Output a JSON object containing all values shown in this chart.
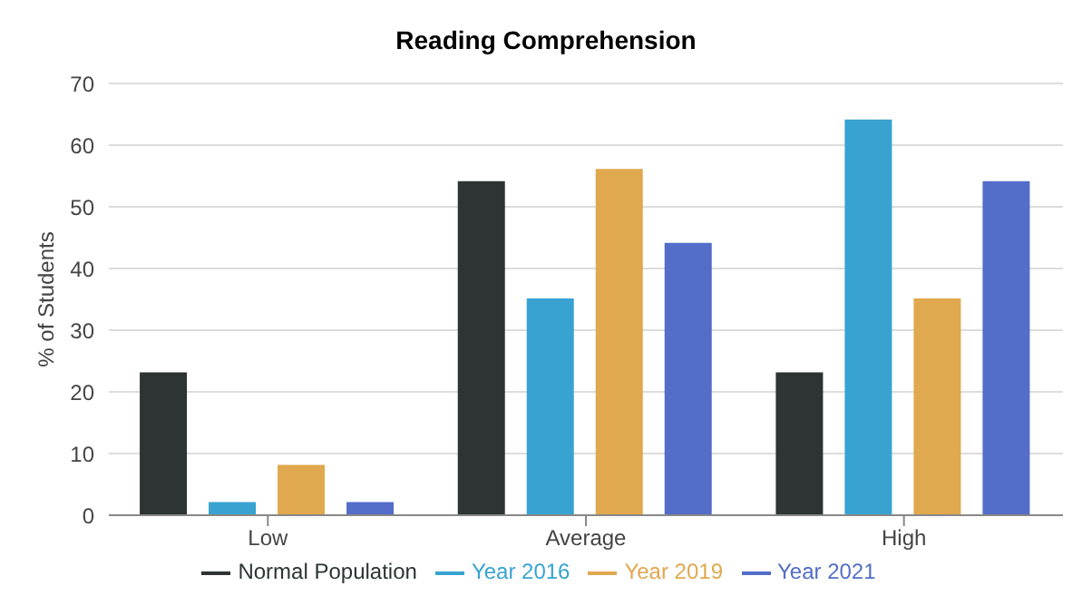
{
  "chart_data": {
    "type": "bar",
    "title": "Reading Comprehension",
    "ylabel": "% of Students",
    "categories": [
      "Low",
      "Average",
      "High"
    ],
    "series": [
      {
        "name": "Normal Population",
        "color": "#2d3433",
        "values": [
          23,
          54,
          23
        ]
      },
      {
        "name": "Year 2016",
        "color": "#38a3d1",
        "values": [
          2,
          35,
          64
        ]
      },
      {
        "name": "Year 2019",
        "color": "#e0a84f",
        "values": [
          8,
          56,
          35
        ]
      },
      {
        "name": "Year 2021",
        "color": "#536dc9",
        "values": [
          2,
          44,
          54
        ]
      }
    ],
    "ylim": [
      0,
      70
    ],
    "yticks": [
      0,
      10,
      20,
      30,
      40,
      50,
      60,
      70
    ],
    "grid": "y",
    "legend": "bottom"
  }
}
